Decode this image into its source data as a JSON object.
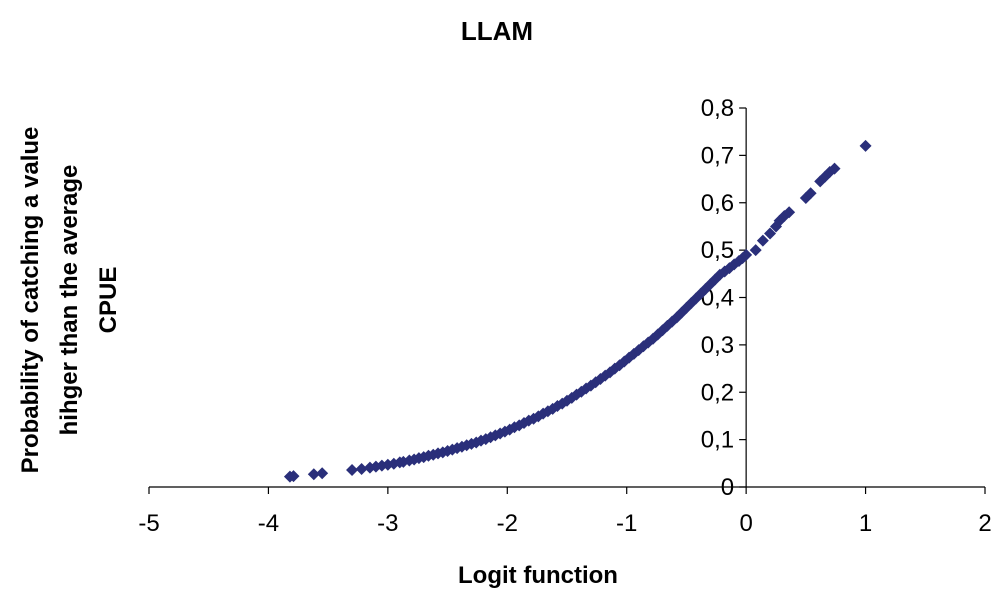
{
  "chart_data": {
    "type": "scatter",
    "title": "LLAM",
    "xlabel": "Logit function",
    "ylabel_lines": [
      "Probability of catching a value",
      "hihger than the average",
      "CPUE"
    ],
    "xlim": [
      -5,
      2
    ],
    "ylim": [
      0,
      0.8
    ],
    "x_ticks": [
      -5,
      -4,
      -3,
      -2,
      -1,
      0,
      1,
      2
    ],
    "x_tick_labels": [
      "-5",
      "-4",
      "-3",
      "-2",
      "-1",
      "0",
      "1",
      "2"
    ],
    "y_ticks": [
      0,
      0.1,
      0.2,
      0.3,
      0.4,
      0.5,
      0.6,
      0.7,
      0.8
    ],
    "y_tick_labels": [
      "0",
      "0,1",
      "0,2",
      "0,3",
      "0,4",
      "0,5",
      "0,6",
      "0,7",
      "0,8"
    ],
    "grid": false,
    "legend": false,
    "marker": "diamond",
    "marker_color": "#2a2f7a",
    "series": [
      {
        "x": [
          -3.82,
          -3.79,
          -3.62,
          -3.55,
          -3.3,
          -3.22,
          -3.15,
          -3.1,
          -3.05,
          -3.0,
          -2.95,
          -2.9,
          -2.87,
          -2.82,
          -2.78,
          -2.74,
          -2.7,
          -2.66,
          -2.62,
          -2.58,
          -2.54,
          -2.5,
          -2.46,
          -2.42,
          -2.38,
          -2.34,
          -2.3,
          -2.26,
          -2.22,
          -2.18,
          -2.14,
          -2.1,
          -2.06,
          -2.02,
          -1.98,
          -1.94,
          -1.9,
          -1.86,
          -1.82,
          -1.78,
          -1.74,
          -1.7,
          -1.66,
          -1.62,
          -1.58,
          -1.54,
          -1.5,
          -1.46,
          -1.42,
          -1.38,
          -1.34,
          -1.3,
          -1.26,
          -1.22,
          -1.18,
          -1.14,
          -1.1,
          -1.06,
          -1.02,
          -0.98,
          -0.94,
          -0.9,
          -0.86,
          -0.82,
          -0.78,
          -0.74,
          -0.7,
          -0.66,
          -0.62,
          -0.58,
          -0.54,
          -0.5,
          -0.46,
          -0.42,
          -0.38,
          -0.34,
          -0.3,
          -0.26,
          -0.22,
          -0.18,
          -0.14,
          -0.1,
          -0.06,
          -0.03,
          0.0,
          0.08,
          0.14,
          0.2,
          0.25,
          0.28,
          0.32,
          0.36,
          0.5,
          0.54,
          0.62,
          0.66,
          0.7,
          0.74,
          1.0
        ],
        "y": [
          0.022,
          0.023,
          0.027,
          0.029,
          0.036,
          0.038,
          0.041,
          0.043,
          0.045,
          0.047,
          0.049,
          0.052,
          0.053,
          0.056,
          0.058,
          0.061,
          0.063,
          0.066,
          0.068,
          0.071,
          0.073,
          0.076,
          0.079,
          0.082,
          0.085,
          0.088,
          0.091,
          0.094,
          0.098,
          0.101,
          0.105,
          0.109,
          0.113,
          0.117,
          0.121,
          0.126,
          0.13,
          0.135,
          0.14,
          0.144,
          0.149,
          0.155,
          0.16,
          0.165,
          0.171,
          0.176,
          0.182,
          0.188,
          0.195,
          0.201,
          0.208,
          0.214,
          0.221,
          0.228,
          0.235,
          0.242,
          0.25,
          0.257,
          0.265,
          0.273,
          0.281,
          0.289,
          0.297,
          0.305,
          0.313,
          0.322,
          0.331,
          0.34,
          0.349,
          0.358,
          0.368,
          0.378,
          0.388,
          0.398,
          0.408,
          0.418,
          0.428,
          0.438,
          0.448,
          0.455,
          0.462,
          0.47,
          0.477,
          0.483,
          0.49,
          0.5,
          0.52,
          0.535,
          0.55,
          0.562,
          0.572,
          0.58,
          0.61,
          0.62,
          0.645,
          0.655,
          0.665,
          0.672,
          0.72
        ]
      }
    ]
  }
}
